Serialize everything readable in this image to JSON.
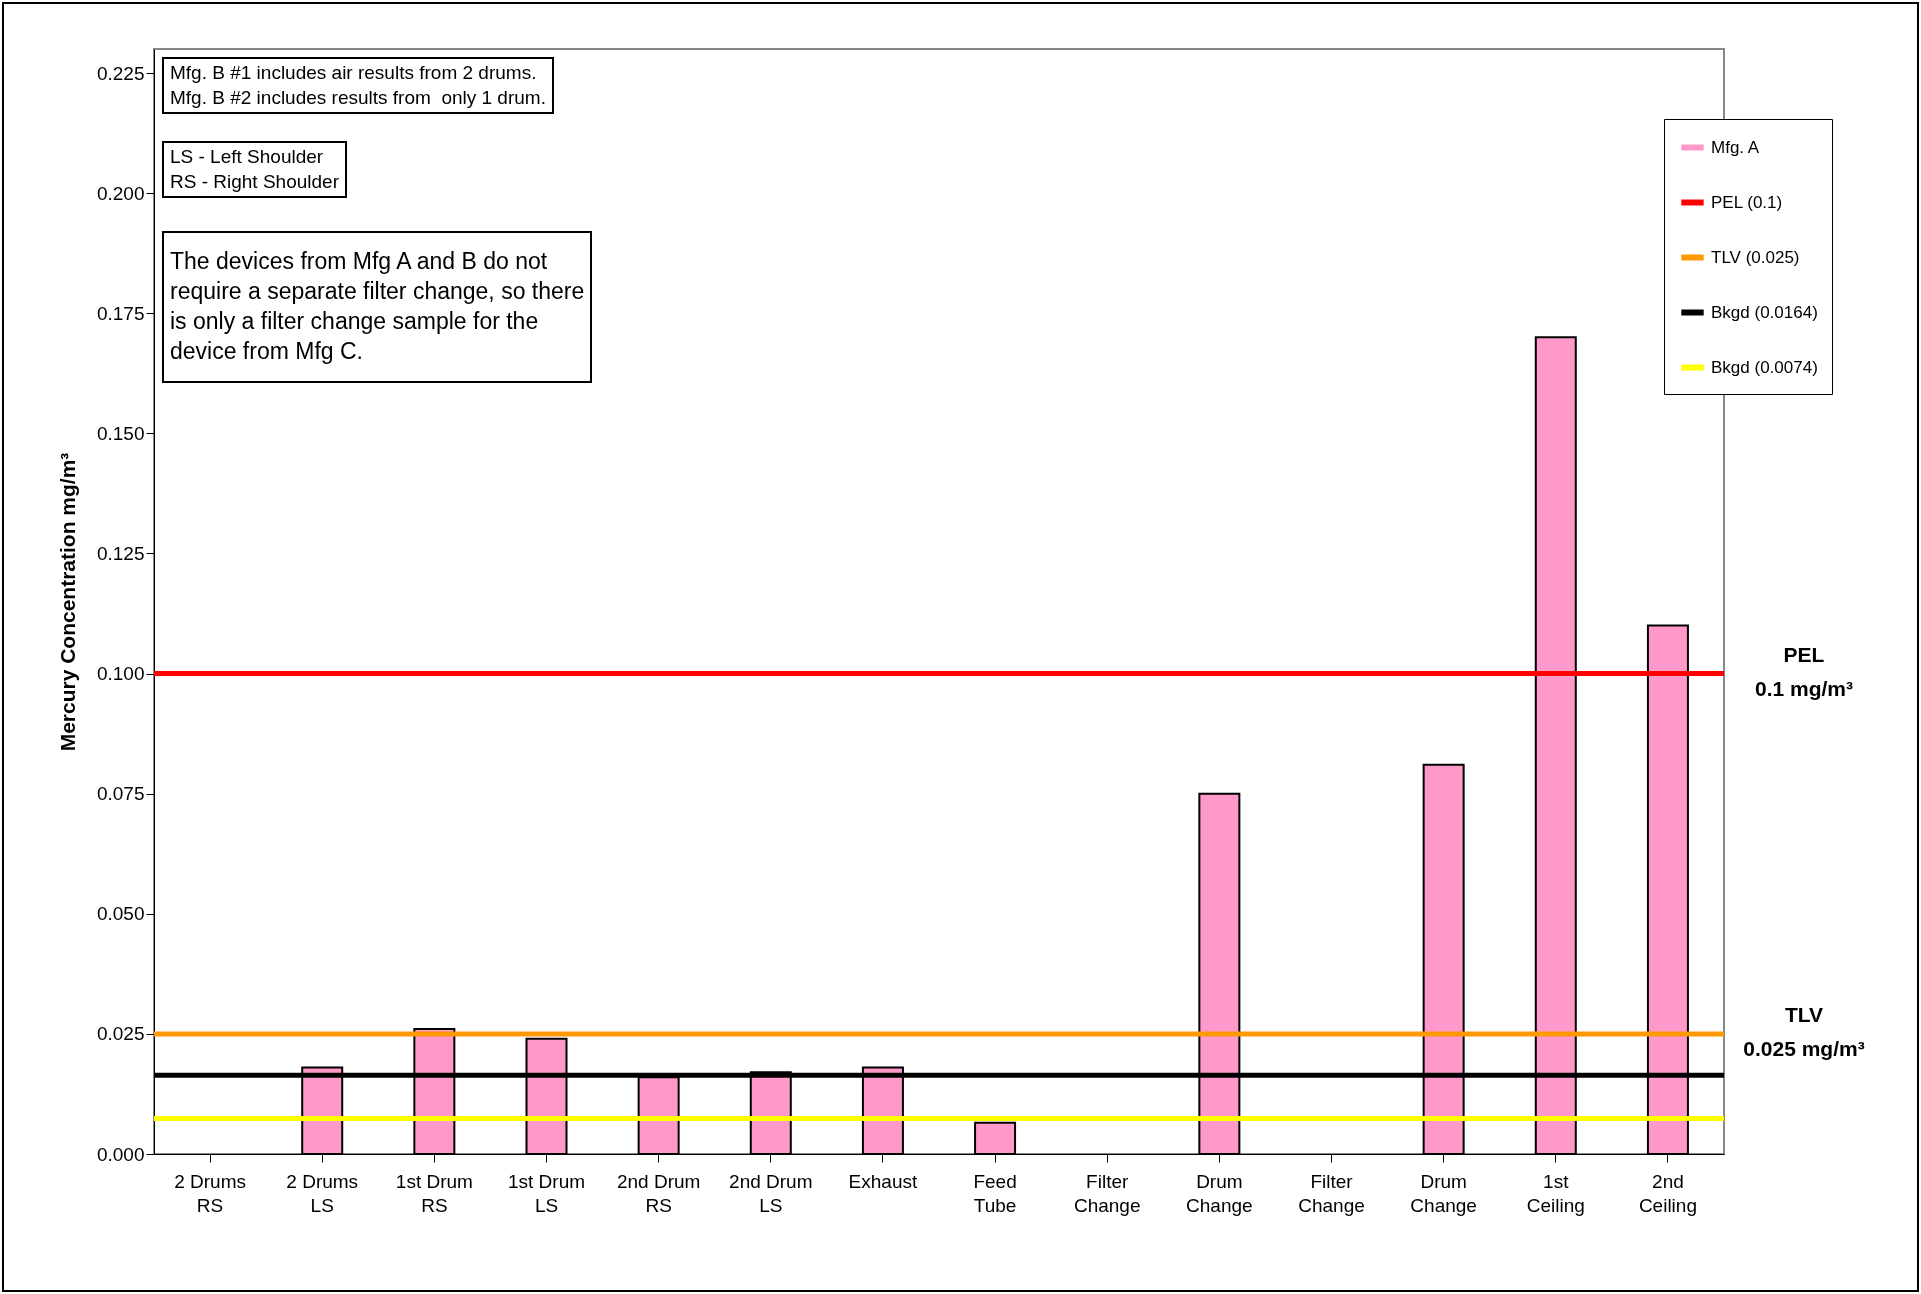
{
  "chart_data": {
    "type": "bar",
    "ylabel": "Mercury Concentration mg/m³",
    "categories": [
      "2 Drums RS",
      "2 Drums LS",
      "1st Drum RS",
      "1st Drum LS",
      "2nd Drum RS",
      "2nd Drum LS",
      "Exhaust",
      "Feed Tube",
      "Filter Change",
      "Drum Change",
      "Filter Change",
      "Drum Change",
      "1st Ceiling",
      "2nd Ceiling"
    ],
    "series": [
      {
        "name": "Mfg. A",
        "color": "#ff99cc",
        "values": [
          null,
          0.018,
          0.026,
          0.024,
          0.016,
          0.017,
          0.018,
          0.0065,
          null,
          0.075,
          null,
          0.081,
          0.17,
          0.11
        ]
      }
    ],
    "ylim": [
      0,
      0.23
    ],
    "yticks": [
      {
        "value": 0,
        "label": "0.000"
      },
      {
        "value": 0.025,
        "label": "0.025"
      },
      {
        "value": 0.05,
        "label": "0.050"
      },
      {
        "value": 0.075,
        "label": "0.075"
      },
      {
        "value": 0.1,
        "label": "0.100"
      },
      {
        "value": 0.125,
        "label": "0.125"
      },
      {
        "value": 0.15,
        "label": "0.150"
      },
      {
        "value": 0.175,
        "label": "0.175"
      },
      {
        "value": 0.2,
        "label": "0.200"
      },
      {
        "value": 0.225,
        "label": "0.225"
      }
    ],
    "ref_lines": [
      {
        "axis": "y",
        "value": 0.1,
        "label": "PEL (0.1)",
        "color": "#ff0000"
      },
      {
        "axis": "y",
        "value": 0.025,
        "label": "TLV (0.025)",
        "color": "#ff9900"
      },
      {
        "axis": "y",
        "value": 0.0164,
        "label": "Bkgd (0.0164)",
        "color": "#000000"
      },
      {
        "axis": "y",
        "value": 0.0074,
        "label": "Bkgd (0.0074)",
        "color": "#ffff00"
      }
    ],
    "annotations": [
      "Mfg. B #1 includes air results from 2 drums.\nMfg. B #2 includes results from  only 1 drum.",
      "LS - Left Shoulder\nRS - Right Shoulder",
      "The devices from Mfg A and B do not\nrequire a separate filter change, so there\nis only a filter change sample for the\ndevice from Mfg C.",
      "PEL\n0.1 mg/m³",
      "TLV\n0.025 mg/m³"
    ],
    "legend": "top right",
    "grid": false
  }
}
